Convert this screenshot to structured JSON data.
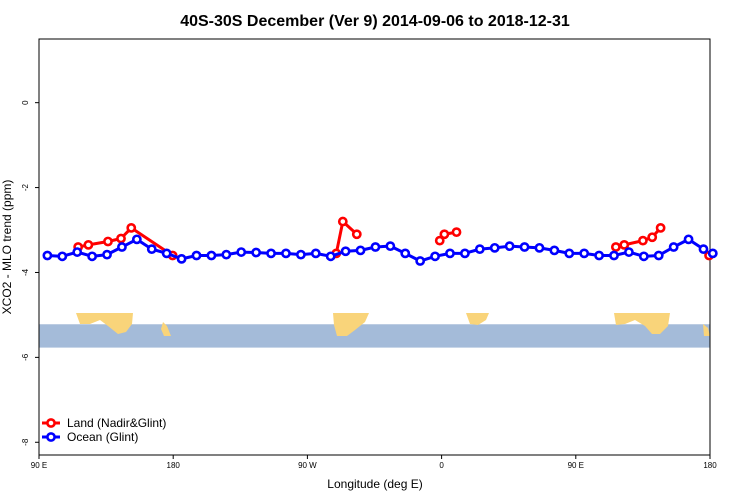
{
  "chart_data": {
    "type": "line",
    "title": "40S-30S December (Ver 9)   2014-09-06 to 2018-12-31",
    "xlabel": "Longitude (deg E)",
    "ylabel": "XCO2 - MLO trend (ppm)",
    "xlim": [
      90,
      450
    ],
    "ylim": [
      -8.3,
      1.5
    ],
    "x_ticks": [
      {
        "value": 90,
        "label": "90 E"
      },
      {
        "value": 162,
        "label": "180"
      },
      {
        "value": 234,
        "label": "90 W"
      },
      {
        "value": 306,
        "label": "0"
      },
      {
        "value": 378,
        "label": "90 E"
      },
      {
        "value": 450,
        "label": "180"
      }
    ],
    "y_ticks": [
      {
        "value": 0,
        "label": "0"
      },
      {
        "value": -2,
        "label": "-2"
      },
      {
        "value": -4,
        "label": "-4"
      },
      {
        "value": -6,
        "label": "-6"
      },
      {
        "value": -8,
        "label": "-8"
      }
    ],
    "grid": false,
    "legend_position": "bottom-left",
    "map_strip": {
      "y_top": -5.22,
      "y_bottom": -5.77,
      "ocean_color": "#a4bbd9",
      "land_color": "#f9d47a"
    },
    "series": [
      {
        "name": "Land (Nadir&Glint)",
        "color": "#ff0000",
        "segments": [
          {
            "x": [
              111.0,
              116.5,
              127.0,
              134.0,
              139.5,
              161.7
            ],
            "y": [
              -3.4,
              -3.35,
              -3.27,
              -3.2,
              -2.95,
              -3.6
            ]
          },
          {
            "x": [
              249.5,
              253.0,
              260.5
            ],
            "y": [
              -3.55,
              -2.8,
              -3.1
            ]
          },
          {
            "x": [
              305.0,
              307.5,
              314.0
            ],
            "y": [
              -3.25,
              -3.1,
              -3.05
            ]
          },
          {
            "x": [
              399.5,
              404.0,
              414.0,
              419.0,
              423.5
            ],
            "y": [
              -3.4,
              -3.35,
              -3.25,
              -3.17,
              -2.95
            ]
          },
          {
            "x": [
              449.5
            ],
            "y": [
              -3.6
            ]
          }
        ]
      },
      {
        "name": "Ocean (Glint)",
        "color": "#0000ff",
        "segments": [
          {
            "x": [
              94.5,
              102.5,
              110.5,
              118.5,
              126.5,
              134.5,
              142.5,
              150.5,
              158.5,
              166.5,
              174.5,
              182.5,
              190.5,
              198.5,
              206.5,
              214.5,
              222.5,
              230.5,
              238.5,
              246.5,
              254.5,
              262.5,
              270.5,
              278.5,
              286.5,
              294.5,
              302.5,
              310.5,
              318.5,
              326.5,
              334.5,
              342.5,
              350.5,
              358.5,
              366.5,
              374.5,
              382.5,
              390.5,
              398.5,
              406.5,
              414.5,
              422.5,
              430.5,
              438.5,
              446.5
            ],
            "y": [
              -3.6,
              -3.62,
              -3.52,
              -3.62,
              -3.58,
              -3.4,
              -3.22,
              -3.45,
              -3.55,
              -3.68,
              -3.6,
              -3.6,
              -3.58,
              -3.52,
              -3.53,
              -3.55,
              -3.55,
              -3.58,
              -3.55,
              -3.62,
              -3.5,
              -3.48,
              -3.4,
              -3.38,
              -3.55,
              -3.73,
              -3.62,
              -3.55,
              -3.55,
              -3.45,
              -3.42,
              -3.38,
              -3.4,
              -3.42,
              -3.48,
              -3.55,
              -3.55,
              -3.6,
              -3.6,
              -3.52,
              -3.62,
              -3.6,
              -3.4,
              -3.22,
              -3.45
            ]
          },
          {
            "x": [
              451.5
            ],
            "y": [
              -3.55
            ]
          }
        ]
      }
    ]
  }
}
